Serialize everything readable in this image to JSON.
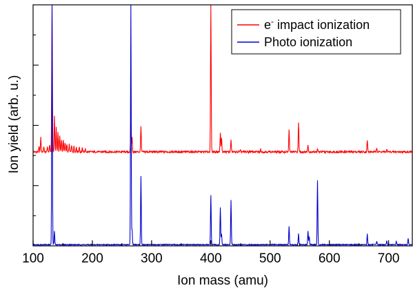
{
  "chart_data": {
    "type": "line",
    "xlabel": "Ion mass (amu)",
    "ylabel": "Ion yield (arb. u.)",
    "xlim": [
      100,
      740
    ],
    "x_ticks": [
      100,
      200,
      300,
      400,
      500,
      600,
      700
    ],
    "x_tick_labels": [
      "100",
      "200",
      "300",
      "400",
      "500",
      "600",
      "700"
    ],
    "ylim": [
      0,
      1
    ],
    "y_tick_labels_shown": false,
    "grid": false,
    "legend": {
      "position": "top-right"
    },
    "series": [
      {
        "name": "e- impact ionization",
        "legend_text": "e",
        "legend_superscript": "-",
        "legend_text_rest": " impact ionization",
        "color": "#ff0000",
        "baseline": 0.39,
        "peaks": [
          {
            "x": 110,
            "y": 0.41
          },
          {
            "x": 113,
            "y": 0.45
          },
          {
            "x": 118,
            "y": 0.41
          },
          {
            "x": 124,
            "y": 0.41
          },
          {
            "x": 128,
            "y": 0.42
          },
          {
            "x": 132,
            "y": 0.99
          },
          {
            "x": 136,
            "y": 0.54
          },
          {
            "x": 139,
            "y": 0.49
          },
          {
            "x": 142,
            "y": 0.47
          },
          {
            "x": 145,
            "y": 0.46
          },
          {
            "x": 148,
            "y": 0.44
          },
          {
            "x": 151,
            "y": 0.44
          },
          {
            "x": 154,
            "y": 0.43
          },
          {
            "x": 157,
            "y": 0.42
          },
          {
            "x": 161,
            "y": 0.42
          },
          {
            "x": 165,
            "y": 0.42
          },
          {
            "x": 169,
            "y": 0.415
          },
          {
            "x": 173,
            "y": 0.41
          },
          {
            "x": 178,
            "y": 0.41
          },
          {
            "x": 183,
            "y": 0.405
          },
          {
            "x": 188,
            "y": 0.4
          },
          {
            "x": 265,
            "y": 0.51
          },
          {
            "x": 267,
            "y": 0.45
          },
          {
            "x": 282,
            "y": 0.5
          },
          {
            "x": 400,
            "y": 1.0
          },
          {
            "x": 416,
            "y": 0.47
          },
          {
            "x": 418,
            "y": 0.45
          },
          {
            "x": 434,
            "y": 0.44
          },
          {
            "x": 450,
            "y": 0.395
          },
          {
            "x": 466,
            "y": 0.395
          },
          {
            "x": 484,
            "y": 0.4
          },
          {
            "x": 532,
            "y": 0.48
          },
          {
            "x": 548,
            "y": 0.51
          },
          {
            "x": 564,
            "y": 0.42
          },
          {
            "x": 580,
            "y": 0.4
          },
          {
            "x": 664,
            "y": 0.44
          },
          {
            "x": 680,
            "y": 0.41
          },
          {
            "x": 697,
            "y": 0.4
          }
        ]
      },
      {
        "name": "Photo ionization",
        "legend_text": "Photo ionization",
        "color": "#0000cc",
        "baseline": 0.005,
        "peaks": [
          {
            "x": 132,
            "y": 1.0
          },
          {
            "x": 136,
            "y": 0.06
          },
          {
            "x": 265,
            "y": 1.0
          },
          {
            "x": 267,
            "y": 0.07
          },
          {
            "x": 282,
            "y": 0.29
          },
          {
            "x": 400,
            "y": 0.21
          },
          {
            "x": 416,
            "y": 0.16
          },
          {
            "x": 418,
            "y": 0.05
          },
          {
            "x": 434,
            "y": 0.19
          },
          {
            "x": 532,
            "y": 0.08
          },
          {
            "x": 548,
            "y": 0.05
          },
          {
            "x": 564,
            "y": 0.06
          },
          {
            "x": 566,
            "y": 0.04
          },
          {
            "x": 580,
            "y": 0.27
          },
          {
            "x": 664,
            "y": 0.05
          },
          {
            "x": 680,
            "y": 0.02
          },
          {
            "x": 697,
            "y": 0.02
          },
          {
            "x": 713,
            "y": 0.02
          },
          {
            "x": 733,
            "y": 0.03
          }
        ]
      }
    ]
  }
}
